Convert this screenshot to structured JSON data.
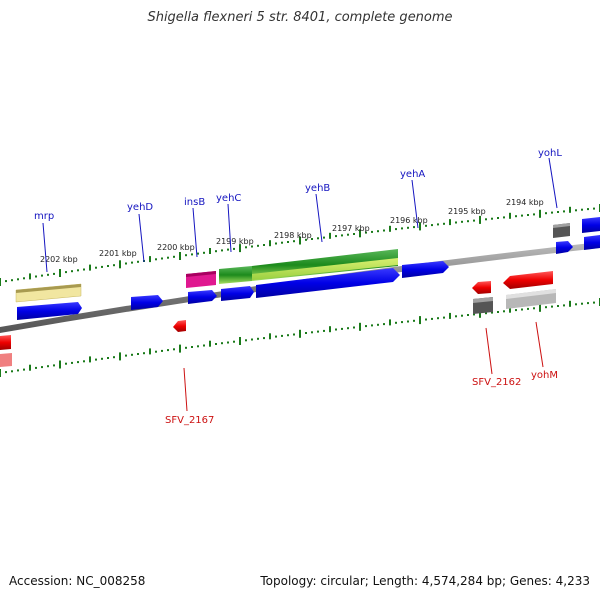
{
  "header": {
    "title": "Shigella flexneri 5 str. 8401, complete genome"
  },
  "footer": {
    "accession": "Accession: NC_008258",
    "summary": "Topology: circular; Length: 4,574,284 bp; Genes: 4,233"
  },
  "scale_ticks": [
    "2202 kbp",
    "2201 kbp",
    "2200 kbp",
    "2199 kbp",
    "2198 kbp",
    "2197 kbp",
    "2196 kbp",
    "2195 kbp",
    "2194 kbp"
  ],
  "genes_forward": [
    "mrp",
    "yehD",
    "insB",
    "yehC",
    "yehB",
    "yehA",
    "yohL"
  ],
  "genes_reverse": [
    "SFV_2167",
    "SFV_2162",
    "yohM"
  ],
  "colors": {
    "forward_gene": "#1010e0",
    "reverse_gene": "#e01010",
    "backbone": "#808080",
    "tick": "#1a7a1a",
    "label_forward": "#1515c0",
    "label_reverse": "#cc1111"
  }
}
